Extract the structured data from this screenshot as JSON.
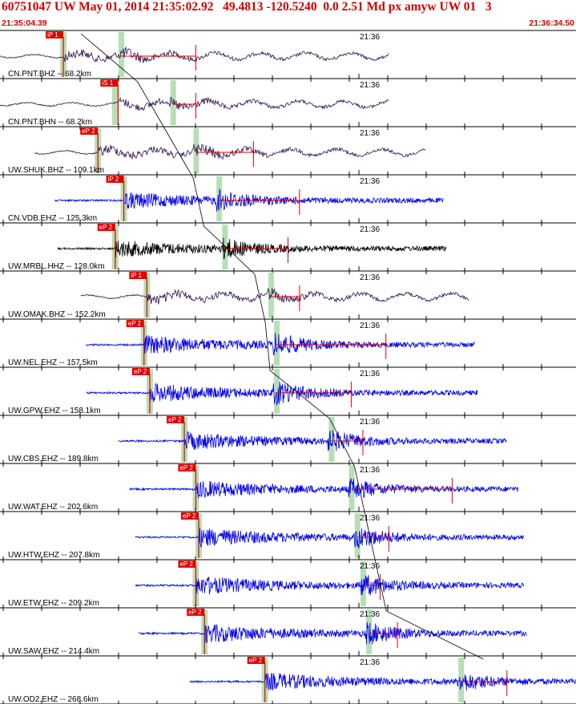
{
  "header": {
    "title": "60751047 UW May 01, 2014 21:35:02.92   49.4813 -120.5240  0.0 2.51 Md px amyw UW 01   3",
    "start_time": "21:35:04.39",
    "end_time": "21:36:34.50"
  },
  "time_mark": "21:36",
  "colors": {
    "header_text": "#d00000",
    "pick_box": "#e00000",
    "pick_line": "#e00000",
    "pick_window": "#b6dfb6",
    "trace_blue": "#0000ee",
    "trace_purple": "#2a0a4a",
    "trace_black": "#000000",
    "separator": "#000000",
    "travel_curve": "#000000"
  },
  "traces": [
    {
      "label": "CN.PNT.BHZ -- 68.2km",
      "pick": "iP 1",
      "color": "purple",
      "pick_t": 0.11,
      "start_t": 0.0,
      "end_t": 0.675,
      "spans": [
        0.11,
        0.21,
        0.34
      ],
      "amp": 0.45
    },
    {
      "label": "CN.PNT.BHN -- 68.2km",
      "pick": "iS 1",
      "color": "purple",
      "pick_t": 0.205,
      "start_t": 0.0,
      "end_t": 0.675,
      "spans": [
        0.2,
        0.3,
        0.34
      ],
      "amp": 0.35
    },
    {
      "label": "UW.SHUK.BHZ -- 109.1km",
      "pick": "eP 2",
      "color": "purple",
      "pick_t": 0.17,
      "start_t": 0.06,
      "end_t": 0.74,
      "spans": [
        0.17,
        0.34,
        0.44
      ],
      "amp": 0.55
    },
    {
      "label": "CN.VDB.EHZ -- 125.3km",
      "pick": "iP 2",
      "color": "blue",
      "pick_t": 0.215,
      "start_t": 0.095,
      "end_t": 0.77,
      "spans": [
        0.215,
        0.38,
        0.52
      ],
      "amp": 0.6
    },
    {
      "label": "UW.MRBL.HHZ -- 128.0km",
      "pick": "eP 2",
      "color": "black",
      "pick_t": 0.2,
      "start_t": 0.1,
      "end_t": 0.775,
      "spans": [
        0.2,
        0.39,
        0.5
      ],
      "amp": 0.6
    },
    {
      "label": "UW.OMAK.BHZ -- 152.2km",
      "pick": "iP 1",
      "color": "purple",
      "pick_t": 0.255,
      "start_t": 0.14,
      "end_t": 0.815,
      "spans": [
        0.255,
        0.47,
        0.52
      ],
      "amp": 0.55
    },
    {
      "label": "UW.NEL.EHZ -- 157.5km",
      "pick": "eP 2",
      "color": "blue",
      "pick_t": 0.25,
      "start_t": 0.15,
      "end_t": 0.825,
      "spans": [
        0.25,
        0.48,
        0.67
      ],
      "amp": 0.7
    },
    {
      "label": "UW.GPW.EHZ -- 158.1km",
      "pick": "eP 2",
      "color": "blue",
      "pick_t": 0.26,
      "start_t": 0.15,
      "end_t": 0.83,
      "spans": [
        0.26,
        0.48,
        0.61
      ],
      "amp": 0.7
    },
    {
      "label": "UW.CBS.EHZ -- 189.8km",
      "pick": "eP 2",
      "color": "blue",
      "pick_t": 0.32,
      "start_t": 0.205,
      "end_t": 0.88,
      "spans": [
        0.32,
        0.575,
        0.63
      ],
      "amp": 0.65
    },
    {
      "label": "UW.WAT.EHZ -- 202.6km",
      "pick": "eP 2",
      "color": "blue",
      "pick_t": 0.34,
      "start_t": 0.225,
      "end_t": 0.9,
      "spans": [
        0.34,
        0.61,
        0.785
      ],
      "amp": 0.65
    },
    {
      "label": "UW.HTW.EHZ -- 207.8km",
      "pick": "eP 2",
      "color": "blue",
      "pick_t": 0.345,
      "start_t": 0.235,
      "end_t": 0.91,
      "spans": [
        0.345,
        0.62,
        0.675
      ],
      "amp": 0.7
    },
    {
      "label": "UW.ETW.EHZ -- 209.2km",
      "pick": "eP 2",
      "color": "blue",
      "pick_t": 0.34,
      "start_t": 0.235,
      "end_t": 0.91,
      "spans": [
        0.34,
        0.63,
        0.66
      ],
      "amp": 0.7
    },
    {
      "label": "UW.SAW.EHZ -- 214.4km",
      "pick": "eP 2",
      "color": "blue",
      "pick_t": 0.355,
      "start_t": 0.24,
      "end_t": 0.915,
      "spans": [
        0.355,
        0.64,
        0.69
      ],
      "amp": 0.7
    },
    {
      "label": "UW.OD2.EHZ -- 268.6km",
      "pick": "eP 2",
      "color": "blue",
      "pick_t": 0.46,
      "start_t": 0.33,
      "end_t": 1.0,
      "spans": [
        0.46,
        0.8,
        0.88
      ],
      "amp": 0.65
    }
  ]
}
